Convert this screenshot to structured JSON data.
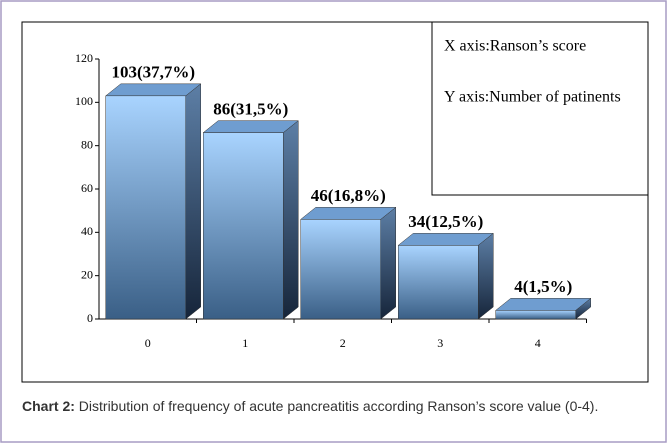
{
  "chart_data": {
    "type": "bar",
    "categories": [
      "0",
      "1",
      "2",
      "3",
      "4"
    ],
    "values": [
      103,
      86,
      46,
      34,
      4
    ],
    "value_labels": [
      "103(37,7%)",
      "86(31,5%)",
      "46(16,8%)",
      "34(12,5%)",
      "4(1,5%)"
    ],
    "color": "#8fc3f5",
    "ylim": [
      0,
      120
    ],
    "yticks": [
      0,
      20,
      40,
      60,
      80,
      100,
      120
    ],
    "annotations": [
      "X axis:Ranson’s score",
      "Y axis:Number of patinents"
    ]
  },
  "caption": {
    "label": "Chart 2:",
    "text": "Distribution of frequency of acute pancreatitis according Ranson’s score value (0-4)."
  }
}
